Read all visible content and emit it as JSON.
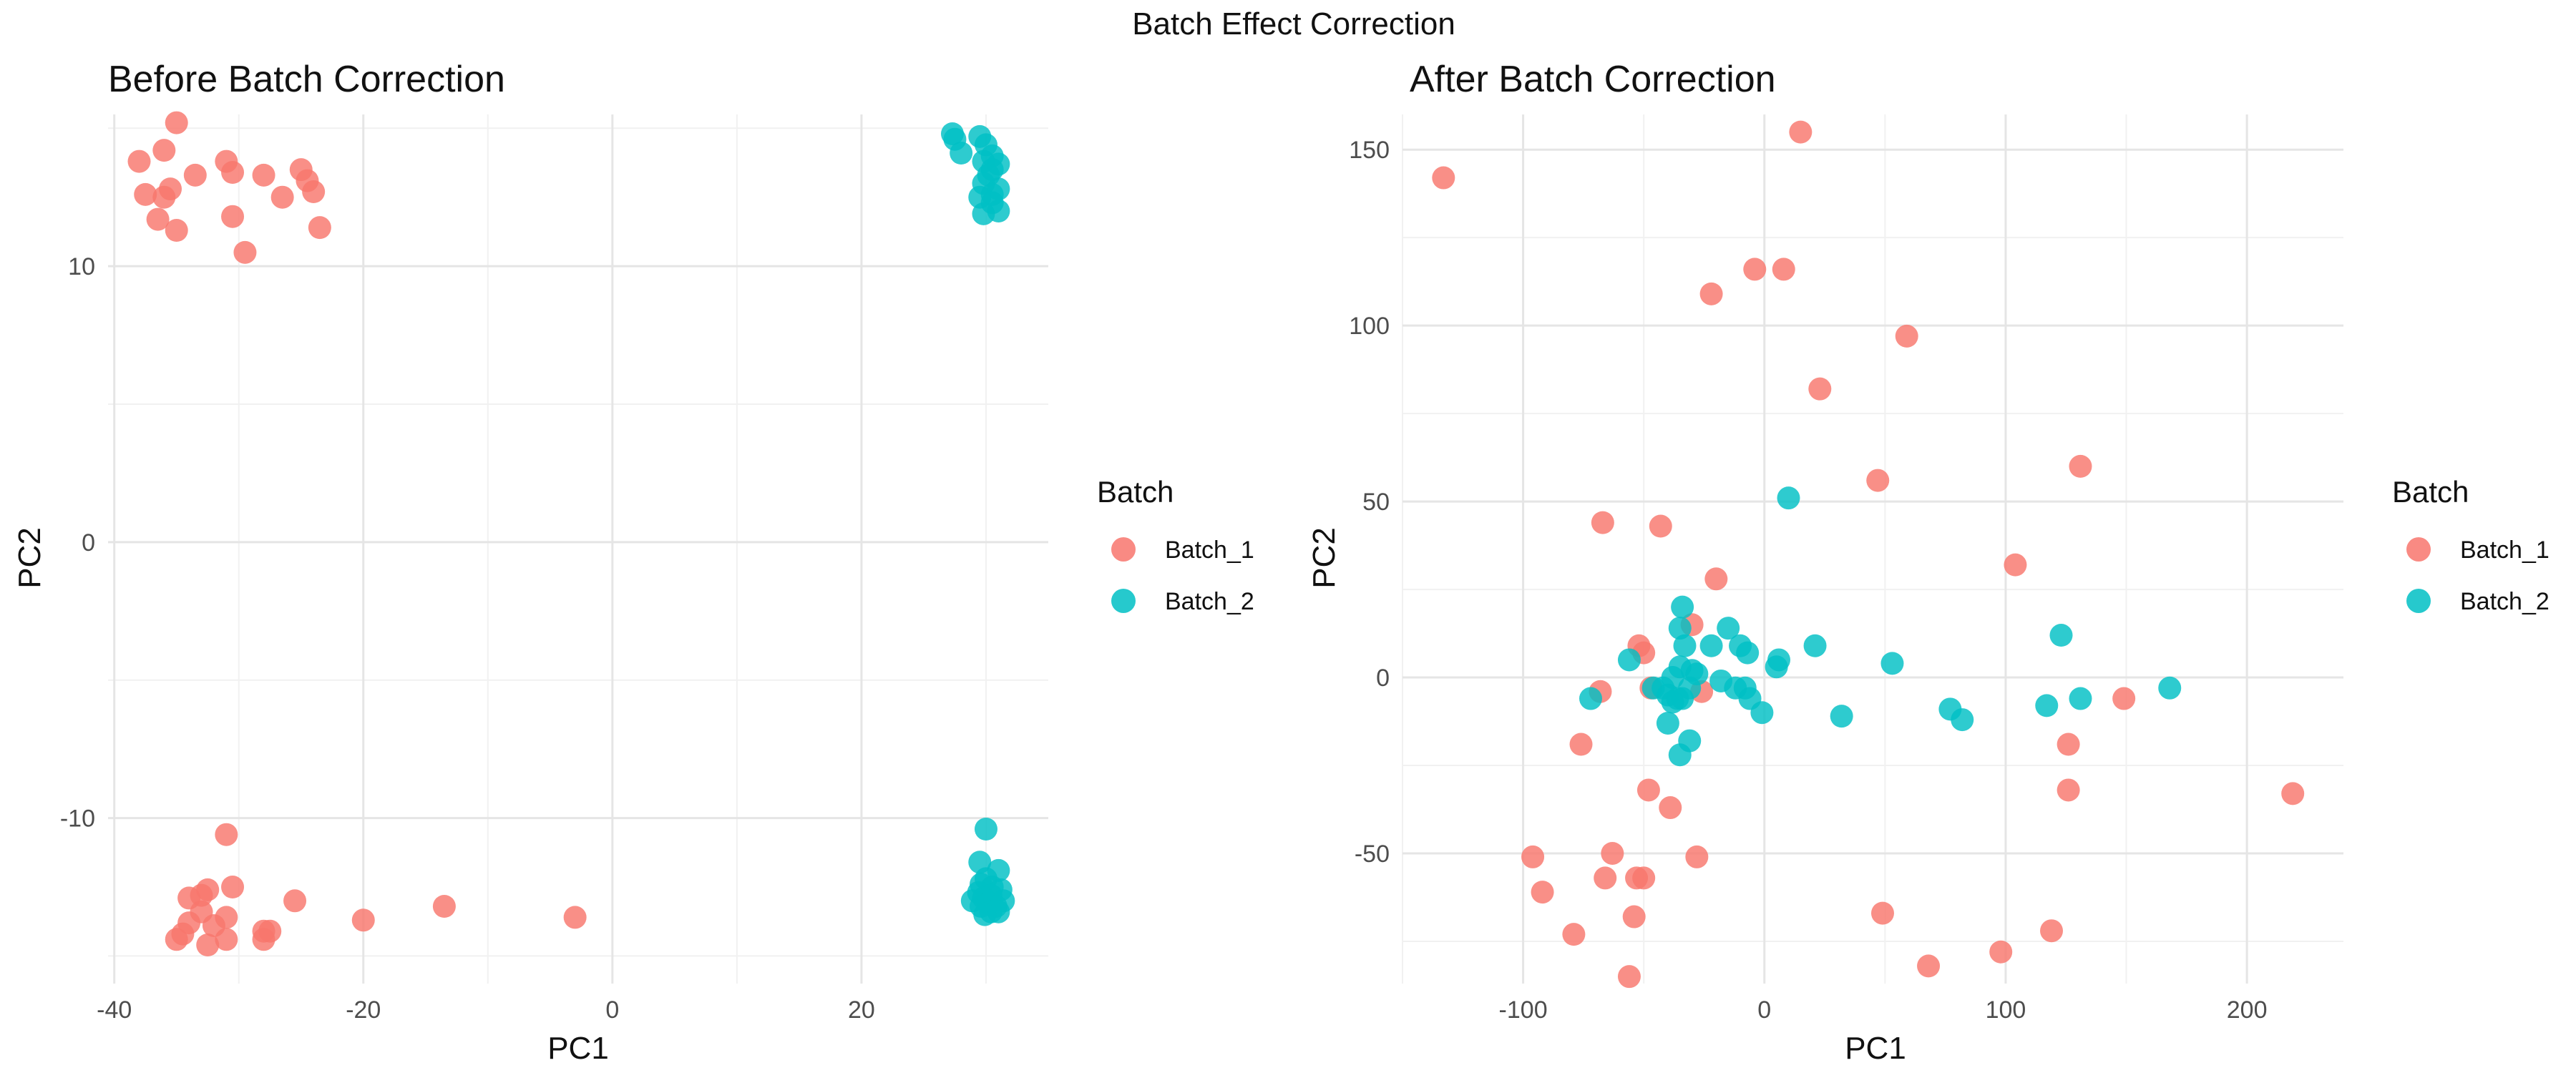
{
  "suptitle": "Batch Effect Correction",
  "colors": {
    "Batch_1": "#F8766D",
    "Batch_2": "#00BFC4"
  },
  "chart_data": [
    {
      "type": "scatter",
      "title": "Before Batch Correction",
      "xlabel": "PC1",
      "ylabel": "PC2",
      "xlim": [
        -40.5,
        35
      ],
      "ylim": [
        -16,
        15.5
      ],
      "xticks": [
        -40,
        -20,
        0,
        20
      ],
      "yticks": [
        -10,
        0,
        10
      ],
      "grid": true,
      "legend": {
        "title": "Batch",
        "position": "right",
        "entries": [
          "Batch_1",
          "Batch_2"
        ]
      },
      "series": [
        {
          "name": "Batch_1",
          "points": [
            [
              -35,
              15.2
            ],
            [
              -36,
              14.2
            ],
            [
              -38,
              13.8
            ],
            [
              -31,
              13.8
            ],
            [
              -33.5,
              13.3
            ],
            [
              -30.5,
              13.4
            ],
            [
              -28,
              13.3
            ],
            [
              -25,
              13.5
            ],
            [
              -24.5,
              13.1
            ],
            [
              -37.5,
              12.6
            ],
            [
              -35.5,
              12.8
            ],
            [
              -36,
              12.5
            ],
            [
              -24,
              12.7
            ],
            [
              -26.5,
              12.5
            ],
            [
              -36.5,
              11.7
            ],
            [
              -30.5,
              11.8
            ],
            [
              -35,
              11.3
            ],
            [
              -23.5,
              11.4
            ],
            [
              -29.5,
              10.5
            ],
            [
              -31,
              -10.6
            ],
            [
              -30.5,
              -12.5
            ],
            [
              -32.5,
              -12.6
            ],
            [
              -33,
              -12.8
            ],
            [
              -34,
              -12.9
            ],
            [
              -25.5,
              -13.0
            ],
            [
              -13.5,
              -13.2
            ],
            [
              -33,
              -13.4
            ],
            [
              -31,
              -13.6
            ],
            [
              -20,
              -13.7
            ],
            [
              -3,
              -13.6
            ],
            [
              -34,
              -13.8
            ],
            [
              -32,
              -13.9
            ],
            [
              -28,
              -14.1
            ],
            [
              -27.5,
              -14.1
            ],
            [
              -34.5,
              -14.2
            ],
            [
              -35,
              -14.4
            ],
            [
              -31,
              -14.4
            ],
            [
              -28,
              -14.4
            ],
            [
              -32.5,
              -14.6
            ]
          ]
        },
        {
          "name": "Batch_2",
          "points": [
            [
              27.3,
              14.8
            ],
            [
              29.5,
              14.7
            ],
            [
              27.5,
              14.6
            ],
            [
              30,
              14.4
            ],
            [
              28,
              14.1
            ],
            [
              30.5,
              14.0
            ],
            [
              29.8,
              13.8
            ],
            [
              31,
              13.7
            ],
            [
              30.5,
              13.5
            ],
            [
              30.2,
              13.3
            ],
            [
              29.8,
              13.0
            ],
            [
              31,
              12.8
            ],
            [
              30.5,
              12.6
            ],
            [
              29.5,
              12.5
            ],
            [
              30.5,
              12.3
            ],
            [
              31,
              12.0
            ],
            [
              29.8,
              11.9
            ],
            [
              30,
              -10.4
            ],
            [
              29.5,
              -11.6
            ],
            [
              31,
              -11.9
            ],
            [
              30,
              -12.2
            ],
            [
              29.6,
              -12.4
            ],
            [
              30.5,
              -12.5
            ],
            [
              31.2,
              -12.6
            ],
            [
              29.4,
              -12.7
            ],
            [
              30.4,
              -12.8
            ],
            [
              29.8,
              -12.9
            ],
            [
              31.4,
              -13.0
            ],
            [
              28.9,
              -13.0
            ],
            [
              30.2,
              -13.1
            ],
            [
              30.8,
              -13.2
            ],
            [
              29.6,
              -13.2
            ],
            [
              30.4,
              -13.4
            ],
            [
              31,
              -13.4
            ],
            [
              29.9,
              -13.5
            ]
          ]
        }
      ]
    },
    {
      "type": "scatter",
      "title": "After Batch Correction",
      "xlabel": "PC1",
      "ylabel": "PC2",
      "xlim": [
        -150,
        240
      ],
      "ylim": [
        -87,
        160
      ],
      "xticks": [
        -100,
        0,
        100,
        200
      ],
      "yticks": [
        -50,
        0,
        50,
        100,
        150
      ],
      "grid": true,
      "legend": {
        "title": "Batch",
        "position": "right",
        "entries": [
          "Batch_1",
          "Batch_2"
        ]
      },
      "series": [
        {
          "name": "Batch_1",
          "points": [
            [
              -133,
              142
            ],
            [
              15,
              155
            ],
            [
              -22,
              109
            ],
            [
              -4,
              116
            ],
            [
              8,
              116
            ],
            [
              59,
              97
            ],
            [
              23,
              82
            ],
            [
              47,
              56
            ],
            [
              131,
              60
            ],
            [
              -67,
              44
            ],
            [
              -43,
              43
            ],
            [
              -20,
              28
            ],
            [
              104,
              32
            ],
            [
              -30,
              15
            ],
            [
              -52,
              9
            ],
            [
              -50,
              7
            ],
            [
              -68,
              -4
            ],
            [
              -47,
              -3
            ],
            [
              -26,
              -4
            ],
            [
              149,
              -6
            ],
            [
              -76,
              -19
            ],
            [
              126,
              -19
            ],
            [
              -48,
              -32
            ],
            [
              -39,
              -37
            ],
            [
              126,
              -32
            ],
            [
              219,
              -33
            ],
            [
              -96,
              -51
            ],
            [
              -63,
              -50
            ],
            [
              -28,
              -51
            ],
            [
              -92,
              -61
            ],
            [
              -66,
              -57
            ],
            [
              -53,
              -57
            ],
            [
              -50,
              -57
            ],
            [
              -54,
              -68
            ],
            [
              49,
              -67
            ],
            [
              119,
              -72
            ],
            [
              -79,
              -73
            ],
            [
              98,
              -78
            ],
            [
              68,
              -82
            ],
            [
              -56,
              -85
            ]
          ]
        },
        {
          "name": "Batch_2",
          "points": [
            [
              10,
              51
            ],
            [
              -34,
              20
            ],
            [
              -35,
              14
            ],
            [
              -15,
              14
            ],
            [
              -33,
              9
            ],
            [
              -22,
              9
            ],
            [
              -10,
              9
            ],
            [
              21,
              9
            ],
            [
              -7,
              7
            ],
            [
              -56,
              5
            ],
            [
              6,
              5
            ],
            [
              53,
              4
            ],
            [
              -35,
              3
            ],
            [
              5,
              3
            ],
            [
              -30,
              2
            ],
            [
              -28,
              1
            ],
            [
              -38,
              0
            ],
            [
              -18,
              -1
            ],
            [
              -46,
              -3
            ],
            [
              -42,
              -3
            ],
            [
              -12,
              -3
            ],
            [
              -31,
              -3
            ],
            [
              -40,
              -5
            ],
            [
              -36,
              -6
            ],
            [
              -72,
              -6
            ],
            [
              -34,
              -6
            ],
            [
              -6,
              -6
            ],
            [
              -38,
              -7
            ],
            [
              -8,
              -3
            ],
            [
              131,
              -6
            ],
            [
              168,
              -3
            ],
            [
              117,
              -8
            ],
            [
              77,
              -9
            ],
            [
              -1,
              -10
            ],
            [
              -40,
              -13
            ],
            [
              32,
              -11
            ],
            [
              82,
              -12
            ],
            [
              123,
              12
            ],
            [
              -31,
              -18
            ],
            [
              -35,
              -22
            ]
          ]
        }
      ]
    }
  ]
}
